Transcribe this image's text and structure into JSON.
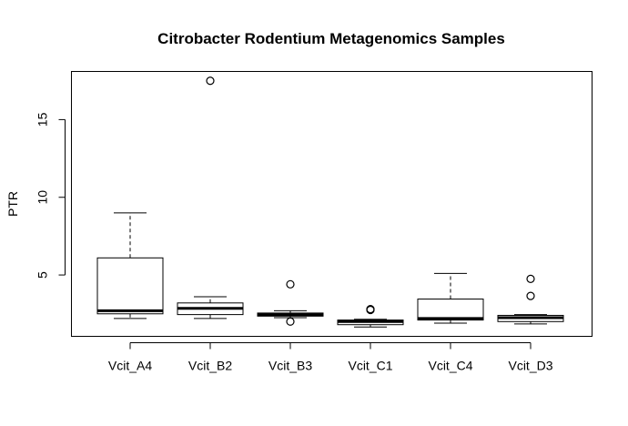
{
  "chart_data": {
    "type": "boxplot",
    "title": "Citrobacter Rodentium Metagenomics Samples",
    "xlabel": "",
    "ylabel": "PTR",
    "ylim": [
      1.05,
      18.1
    ],
    "yticks": [
      5,
      10,
      15
    ],
    "grid": false,
    "legend": "none",
    "categories": [
      "Vcit_A4",
      "Vcit_B2",
      "Vcit_B3",
      "Vcit_C1",
      "Vcit_C4",
      "Vcit_D3"
    ],
    "boxes": [
      {
        "category": "Vcit_A4",
        "whisker_low": 2.2,
        "q1": 2.5,
        "median": 2.7,
        "q3": 6.1,
        "whisker_high": 9.0,
        "outliers": []
      },
      {
        "category": "Vcit_B2",
        "whisker_low": 2.2,
        "q1": 2.45,
        "median": 2.85,
        "q3": 3.2,
        "whisker_high": 3.6,
        "outliers": [
          17.5
        ]
      },
      {
        "category": "Vcit_B3",
        "whisker_low": 2.25,
        "q1": 2.35,
        "median": 2.45,
        "q3": 2.55,
        "whisker_high": 2.7,
        "outliers": [
          4.4,
          2.0
        ]
      },
      {
        "category": "Vcit_C1",
        "whisker_low": 1.65,
        "q1": 1.8,
        "median": 2.0,
        "q3": 2.1,
        "whisker_high": 2.15,
        "outliers": [
          2.75,
          2.8
        ]
      },
      {
        "category": "Vcit_C4",
        "whisker_low": 1.9,
        "q1": 2.1,
        "median": 2.2,
        "q3": 3.45,
        "whisker_high": 5.1,
        "outliers": []
      },
      {
        "category": "Vcit_D3",
        "whisker_low": 1.85,
        "q1": 2.0,
        "median": 2.25,
        "q3": 2.4,
        "whisker_high": 2.45,
        "outliers": [
          4.75,
          3.65
        ]
      }
    ]
  }
}
